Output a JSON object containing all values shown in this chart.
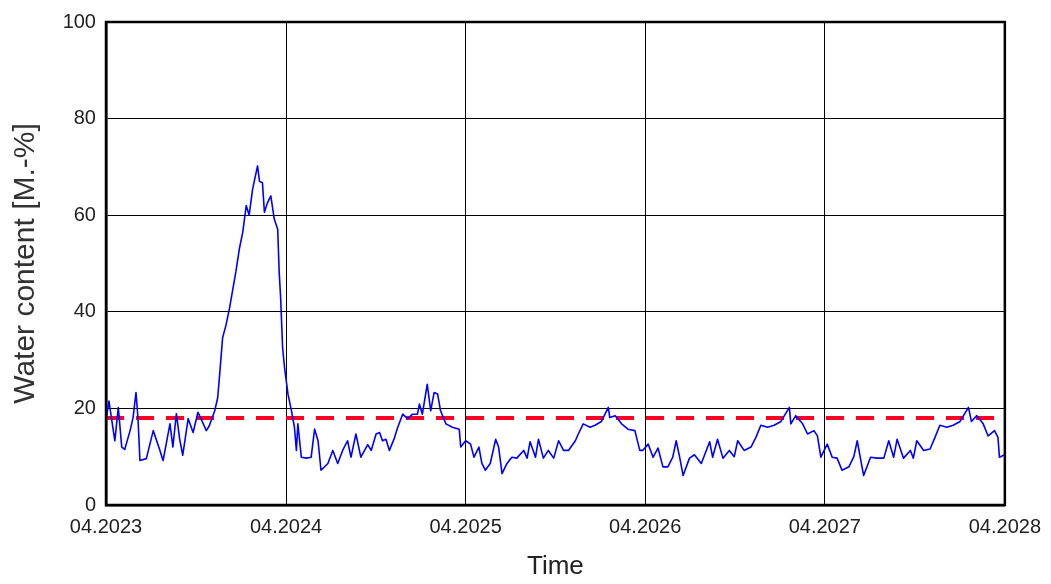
{
  "chart_data": {
    "type": "line",
    "xlabel": "Time",
    "ylabel": "Water content [M.-%]",
    "x": [
      "2023-04-01",
      "2023-04-07",
      "2023-04-19",
      "2023-04-26",
      "2023-05-03",
      "2023-05-09",
      "2023-05-20",
      "2023-05-26",
      "2023-06-01",
      "2023-06-05",
      "2023-06-09",
      "2023-06-22",
      "2023-07-06",
      "2023-07-19",
      "2023-07-26",
      "2023-08-09",
      "2023-08-15",
      "2023-08-22",
      "2023-08-29",
      "2023-09-04",
      "2023-09-15",
      "2023-09-25",
      "2023-10-05",
      "2023-10-22",
      "2023-10-28",
      "2023-11-08",
      "2023-11-14",
      "2023-11-18",
      "2023-11-24",
      "2023-12-01",
      "2023-12-08",
      "2023-12-15",
      "2023-12-21",
      "2023-12-28",
      "2024-01-04",
      "2024-01-11",
      "2024-01-17",
      "2024-01-24",
      "2024-02-03",
      "2024-02-07",
      "2024-02-13",
      "2024-02-17",
      "2024-02-23",
      "2024-03-01",
      "2024-03-08",
      "2024-03-15",
      "2024-03-18",
      "2024-03-21",
      "2024-03-25",
      "2024-03-29",
      "2024-04-05",
      "2024-04-12",
      "2024-04-18",
      "2024-04-22",
      "2024-04-25",
      "2024-05-02",
      "2024-05-12",
      "2024-05-22",
      "2024-05-29",
      "2024-06-05",
      "2024-06-11",
      "2024-06-25",
      "2024-07-05",
      "2024-07-15",
      "2024-07-25",
      "2024-08-04",
      "2024-08-11",
      "2024-08-21",
      "2024-08-31",
      "2024-09-14",
      "2024-09-21",
      "2024-10-01",
      "2024-10-08",
      "2024-10-14",
      "2024-10-21",
      "2024-10-28",
      "2024-11-07",
      "2024-11-14",
      "2024-11-24",
      "2024-12-04",
      "2024-12-14",
      "2024-12-24",
      "2024-12-28",
      "2025-01-03",
      "2025-01-13",
      "2025-01-20",
      "2025-01-27",
      "2025-02-03",
      "2025-02-09",
      "2025-02-20",
      "2025-03-05",
      "2025-03-19",
      "2025-03-22",
      "2025-04-01",
      "2025-04-11",
      "2025-04-18",
      "2025-04-28",
      "2025-05-04",
      "2025-05-11",
      "2025-05-21",
      "2025-06-01",
      "2025-06-07",
      "2025-06-14",
      "2025-06-24",
      "2025-07-04",
      "2025-07-14",
      "2025-07-28",
      "2025-08-04",
      "2025-08-10",
      "2025-08-21",
      "2025-08-27",
      "2025-09-06",
      "2025-09-16",
      "2025-09-27",
      "2025-10-07",
      "2025-10-17",
      "2025-10-27",
      "2025-11-10",
      "2025-11-16",
      "2025-11-26",
      "2025-12-10",
      "2025-12-20",
      "2026-01-02",
      "2026-01-16",
      "2026-01-19",
      "2026-01-30",
      "2026-02-12",
      "2026-02-25",
      "2026-03-11",
      "2026-03-21",
      "2026-03-27",
      "2026-04-07",
      "2026-04-17",
      "2026-04-27",
      "2026-05-07",
      "2026-05-17",
      "2026-05-27",
      "2026-06-03",
      "2026-06-10",
      "2026-06-17",
      "2026-06-30",
      "2026-07-10",
      "2026-07-24",
      "2026-08-10",
      "2026-08-16",
      "2026-08-26",
      "2026-09-06",
      "2026-09-19",
      "2026-09-29",
      "2026-10-06",
      "2026-10-19",
      "2026-11-02",
      "2026-11-12",
      "2026-11-22",
      "2026-12-06",
      "2026-12-19",
      "2027-01-02",
      "2027-01-19",
      "2027-01-22",
      "2027-02-01",
      "2027-02-15",
      "2027-02-25",
      "2027-03-10",
      "2027-03-17",
      "2027-03-24",
      "2027-04-06",
      "2027-04-16",
      "2027-04-26",
      "2027-05-06",
      "2027-05-20",
      "2027-05-30",
      "2027-06-06",
      "2027-06-12",
      "2027-06-19",
      "2027-07-03",
      "2027-07-16",
      "2027-07-30",
      "2027-08-09",
      "2027-08-19",
      "2027-08-26",
      "2027-09-08",
      "2027-09-22",
      "2027-09-28",
      "2027-10-05",
      "2027-10-19",
      "2027-11-01",
      "2027-11-11",
      "2027-11-21",
      "2027-12-05",
      "2027-12-18",
      "2028-01-01",
      "2028-01-18",
      "2028-01-24",
      "2028-02-04",
      "2028-02-17",
      "2028-02-27",
      "2028-03-11",
      "2028-03-18",
      "2028-03-21",
      "2028-04-01"
    ],
    "values": [
      17.5,
      21.5,
      13.3,
      20.2,
      12,
      11.5,
      15.4,
      18.1,
      23.3,
      18,
      9.2,
      9.6,
      15.4,
      11.5,
      9.2,
      16.8,
      12,
      18.9,
      13.5,
      10.3,
      17.9,
      15,
      19.2,
      15.4,
      16.4,
      19.5,
      22.2,
      27,
      34.6,
      37.3,
      40.7,
      44.8,
      48.3,
      53,
      56.5,
      62,
      60,
      65.4,
      70.2,
      67,
      66.7,
      60.6,
      62.5,
      64,
      59.2,
      57.1,
      48.3,
      42.8,
      32.5,
      28.4,
      22.9,
      19.5,
      16.1,
      11.3,
      16.8,
      9.9,
      9.7,
      9.9,
      15.7,
      13.3,
      7.2,
      8.6,
      11.3,
      8.6,
      11.3,
      13.3,
      9.9,
      14.7,
      9.9,
      12.5,
      11.3,
      14.7,
      15,
      13.3,
      13.6,
      11.3,
      13.8,
      16.1,
      18.8,
      17.9,
      18.8,
      18.8,
      20.9,
      18.8,
      25,
      19.5,
      23.3,
      23,
      19.5,
      16.8,
      16.1,
      15.7,
      12,
      13.3,
      12.6,
      9.9,
      12,
      8.6,
      7.2,
      8.6,
      13.6,
      12,
      6.5,
      8.6,
      9.9,
      9.7,
      11.3,
      9.7,
      13.1,
      9.9,
      13.6,
      9.7,
      11.3,
      9.7,
      13.3,
      11.3,
      11.3,
      13.3,
      14.7,
      16.8,
      16.1,
      16.5,
      17.3,
      20.2,
      18.1,
      18.5,
      16.8,
      15.7,
      15.4,
      11.3,
      11.3,
      12.6,
      9.9,
      11.8,
      7.9,
      7.9,
      9.9,
      13.3,
      9.9,
      6.1,
      9.7,
      10.4,
      8.6,
      13.1,
      9.9,
      13.6,
      9.7,
      11.3,
      10,
      13.3,
      11.3,
      12,
      14,
      16.5,
      16.1,
      16.5,
      17.3,
      20.2,
      16.8,
      18.5,
      16.8,
      14.7,
      15.4,
      14.3,
      9.9,
      12.6,
      9.9,
      9.7,
      7.2,
      7.9,
      10,
      13.3,
      9.9,
      6.1,
      9.9,
      9.7,
      9.7,
      13.3,
      9.9,
      13.6,
      9.7,
      11.3,
      9.7,
      13.3,
      11.3,
      11.6,
      14,
      16.5,
      16.1,
      16.5,
      17.3,
      20.2,
      17.3,
      18.5,
      16.8,
      14.3,
      15.4,
      14,
      9.9,
      10.4
    ],
    "color": "#0000ff",
    "xlim": [
      "2023-04",
      "2028-04"
    ],
    "xticks": [
      {
        "value": "2023-04",
        "label": "04.2023"
      },
      {
        "value": "2024-04",
        "label": "04.2024"
      },
      {
        "value": "2025-04",
        "label": "04.2025"
      },
      {
        "value": "2026-04",
        "label": "04.2026"
      },
      {
        "value": "2027-04",
        "label": "04.2027"
      },
      {
        "value": "2028-04",
        "label": "04.2028"
      }
    ],
    "ylim": [
      0,
      100
    ],
    "yticks": [
      0,
      20,
      40,
      60,
      80,
      100
    ],
    "grid": true,
    "ref_lines": [
      {
        "axis": "y",
        "value": 18,
        "color": "#ff0022",
        "line_style": "dashed"
      }
    ]
  }
}
